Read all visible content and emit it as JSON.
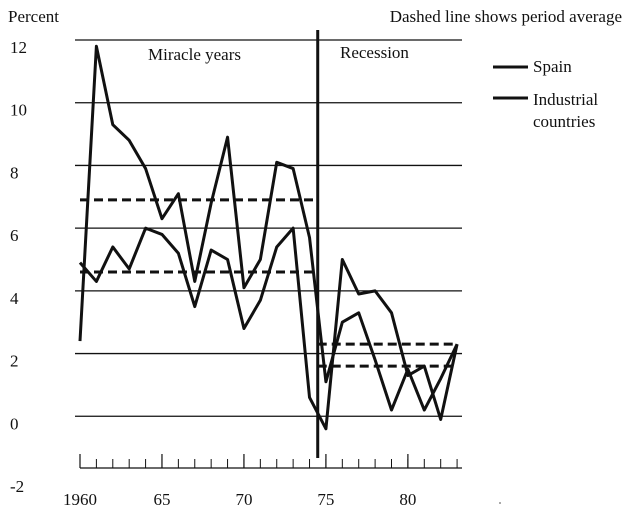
{
  "chart_data": {
    "type": "line",
    "y_axis_label": "Percent",
    "note": "Dashed line shows period average",
    "annotations": [
      "Miracle years",
      "Recession"
    ],
    "x": [
      1960,
      1961,
      1962,
      1963,
      1964,
      1965,
      1966,
      1967,
      1968,
      1969,
      1970,
      1971,
      1972,
      1973,
      1974,
      1975,
      1976,
      1977,
      1978,
      1979,
      1980,
      1981,
      1982,
      1983
    ],
    "series": [
      {
        "name": "Spain",
        "color": "#111111",
        "values": [
          2.4,
          11.8,
          9.3,
          8.8,
          7.9,
          6.3,
          7.1,
          4.3,
          6.8,
          8.9,
          4.1,
          5.0,
          8.1,
          7.9,
          5.7,
          1.1,
          3.0,
          3.3,
          1.8,
          0.2,
          1.5,
          0.2,
          1.2,
          2.3
        ]
      },
      {
        "name": "Industrial countries",
        "color": "#111111",
        "values": [
          4.9,
          4.3,
          5.4,
          4.7,
          6.0,
          5.8,
          5.2,
          3.5,
          5.3,
          5.0,
          2.8,
          3.7,
          5.4,
          6.0,
          0.6,
          -0.4,
          5.0,
          3.9,
          4.0,
          3.3,
          1.3,
          1.6,
          -0.1,
          2.3
        ]
      }
    ],
    "period_averages": [
      {
        "x": [
          1960,
          1974.5
        ],
        "values": [
          6.9,
          6.9
        ]
      },
      {
        "x": [
          1960,
          1974.5
        ],
        "values": [
          4.6,
          4.6
        ]
      },
      {
        "x": [
          1974.5,
          1983
        ],
        "values": [
          1.6,
          1.6
        ]
      },
      {
        "x": [
          1974.5,
          1983
        ],
        "values": [
          2.3,
          2.3
        ]
      }
    ],
    "divider_x": 1974.5,
    "xlim": [
      1960,
      1983.3
    ],
    "xticks": [
      {
        "value": 1960,
        "label": "1960"
      },
      {
        "value": 1965,
        "label": "65"
      },
      {
        "value": 1970,
        "label": "70"
      },
      {
        "value": 1975,
        "label": "75"
      },
      {
        "value": 1980,
        "label": "80"
      }
    ],
    "ylim": [
      -2,
      12
    ],
    "yticks": [
      12,
      10,
      8,
      6,
      4,
      2,
      0,
      -2
    ],
    "grid": true
  }
}
